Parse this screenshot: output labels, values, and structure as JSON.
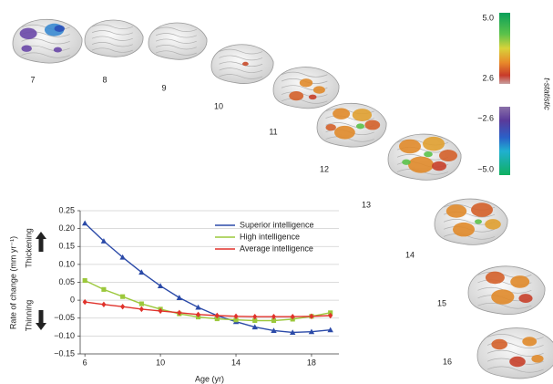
{
  "chart_data": {
    "type": "line",
    "x_label": "Age (yr)",
    "y_label": "Rate of change (mm yr⁻¹)",
    "annotations": [
      "Thickening",
      "Thinning"
    ],
    "x": [
      6,
      7,
      8,
      9,
      10,
      11,
      12,
      13,
      14,
      15,
      16,
      17,
      18,
      19
    ],
    "series": [
      {
        "name": "Superior intelligence",
        "color": "#2b4aa8",
        "marker": "triangle",
        "values": [
          0.215,
          0.165,
          0.12,
          0.078,
          0.04,
          0.007,
          -0.02,
          -0.043,
          -0.06,
          -0.075,
          -0.085,
          -0.09,
          -0.088,
          -0.083
        ]
      },
      {
        "name": "High intelligence",
        "color": "#9cc83c",
        "marker": "square",
        "values": [
          0.055,
          0.03,
          0.01,
          -0.01,
          -0.025,
          -0.038,
          -0.047,
          -0.052,
          -0.055,
          -0.057,
          -0.057,
          -0.053,
          -0.045,
          -0.035
        ]
      },
      {
        "name": "Average intelligence",
        "color": "#e0322b",
        "marker": "diamond",
        "values": [
          -0.005,
          -0.012,
          -0.018,
          -0.025,
          -0.03,
          -0.035,
          -0.04,
          -0.043,
          -0.045,
          -0.046,
          -0.046,
          -0.046,
          -0.045,
          -0.043
        ]
      }
    ],
    "xlim": [
      5.75,
      19.45
    ],
    "xticks": [
      6,
      10,
      14,
      18
    ],
    "ylim": [
      -0.15,
      0.25
    ],
    "yticks": [
      {
        "value": -0.15,
        "label": "−0.15"
      },
      {
        "value": -0.1,
        "label": "−0.10"
      },
      {
        "value": -0.05,
        "label": "−0.05"
      },
      0,
      {
        "value": 0.05,
        "label": "0.05"
      },
      {
        "value": 0.1,
        "label": "0.10"
      },
      0.15,
      {
        "value": 0.2,
        "label": "0.20"
      },
      0.25
    ],
    "grid": true,
    "legend": "top-right"
  },
  "brain_ages": [
    "7",
    "8",
    "9",
    "10",
    "11",
    "12",
    "13",
    "14",
    "15",
    "16"
  ],
  "colorbar": {
    "label": "t-statistic",
    "ticks": [
      "5.0",
      "2.6",
      "−2.6",
      "−5.0"
    ]
  }
}
